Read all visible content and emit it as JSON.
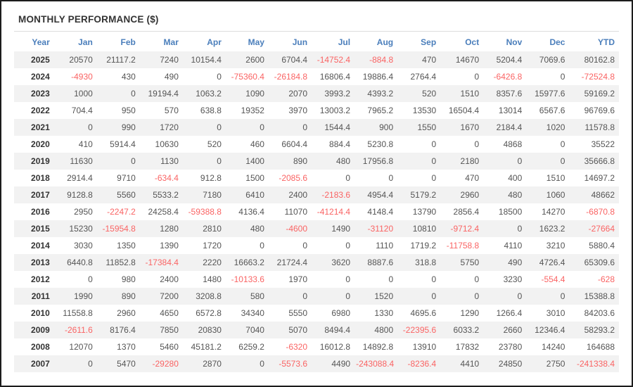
{
  "title": "MONTHLY PERFORMANCE ($)",
  "table": {
    "columns": [
      "Year",
      "Jan",
      "Feb",
      "Mar",
      "Apr",
      "May",
      "Jun",
      "Jul",
      "Aug",
      "Sep",
      "Oct",
      "Nov",
      "Dec",
      "YTD"
    ],
    "rows": [
      {
        "year": "2025",
        "values": [
          20570,
          21117.2,
          7240,
          10154.4,
          2600,
          6704.4,
          -14752.4,
          -884.8,
          470,
          14670,
          5204.4,
          7069.6,
          80162.8
        ]
      },
      {
        "year": "2024",
        "values": [
          -4930,
          430,
          490,
          0,
          -75360.4,
          -26184.8,
          16806.4,
          19886.4,
          2764.4,
          0,
          -6426.8,
          0,
          -72524.8
        ]
      },
      {
        "year": "2023",
        "values": [
          1000,
          0,
          19194.4,
          1063.2,
          1090,
          2070,
          3993.2,
          4393.2,
          520,
          1510,
          8357.6,
          15977.6,
          59169.2
        ]
      },
      {
        "year": "2022",
        "values": [
          704.4,
          950,
          570,
          638.8,
          19352,
          3970,
          13003.2,
          7965.2,
          13530,
          16504.4,
          13014,
          6567.6,
          96769.6
        ]
      },
      {
        "year": "2021",
        "values": [
          0,
          990,
          1720,
          0,
          0,
          0,
          1544.4,
          900,
          1550,
          1670,
          2184.4,
          1020,
          11578.8
        ]
      },
      {
        "year": "2020",
        "values": [
          410,
          5914.4,
          10630,
          520,
          460,
          6604.4,
          884.4,
          5230.8,
          0,
          0,
          4868,
          0,
          35522
        ]
      },
      {
        "year": "2019",
        "values": [
          11630,
          0,
          1130,
          0,
          1400,
          890,
          480,
          17956.8,
          0,
          2180,
          0,
          0,
          35666.8
        ]
      },
      {
        "year": "2018",
        "values": [
          2914.4,
          9710,
          -634.4,
          912.8,
          1500,
          -2085.6,
          0,
          0,
          0,
          470,
          400,
          1510,
          14697.2
        ]
      },
      {
        "year": "2017",
        "values": [
          9128.8,
          5560,
          5533.2,
          7180,
          6410,
          2400,
          -2183.6,
          4954.4,
          5179.2,
          2960,
          480,
          1060,
          48662
        ]
      },
      {
        "year": "2016",
        "values": [
          2950,
          -2247.2,
          24258.4,
          -59388.8,
          4136.4,
          11070,
          -41214.4,
          4148.4,
          13790,
          2856.4,
          18500,
          14270,
          -6870.8
        ]
      },
      {
        "year": "2015",
        "values": [
          15230,
          -15954.8,
          1280,
          2810,
          480,
          -4600,
          1490,
          -31120,
          10810,
          -9712.4,
          0,
          1623.2,
          -27664
        ]
      },
      {
        "year": "2014",
        "values": [
          3030,
          1350,
          1390,
          1720,
          0,
          0,
          0,
          1110,
          1719.2,
          -11758.8,
          4110,
          3210,
          5880.4
        ]
      },
      {
        "year": "2013",
        "values": [
          6440.8,
          11852.8,
          -17384.4,
          2220,
          16663.2,
          21724.4,
          3620,
          8887.6,
          318.8,
          5750,
          490,
          4726.4,
          65309.6
        ]
      },
      {
        "year": "2012",
        "values": [
          0,
          980,
          2400,
          1480,
          -10133.6,
          1970,
          0,
          0,
          0,
          0,
          3230,
          -554.4,
          -628
        ]
      },
      {
        "year": "2011",
        "values": [
          1990,
          890,
          7200,
          3208.8,
          580,
          0,
          0,
          1520,
          0,
          0,
          0,
          0,
          15388.8
        ]
      },
      {
        "year": "2010",
        "values": [
          11558.8,
          2960,
          4650,
          6572.8,
          34340,
          5550,
          6980,
          1330,
          4695.6,
          1290,
          1266.4,
          3010,
          84203.6
        ]
      },
      {
        "year": "2009",
        "values": [
          -2611.6,
          8176.4,
          7850,
          20830,
          7040,
          5070,
          8494.4,
          4800,
          -22395.6,
          6033.2,
          2660,
          12346.4,
          58293.2
        ]
      },
      {
        "year": "2008",
        "values": [
          12070,
          1370,
          5460,
          45181.2,
          6259.2,
          -6320,
          16012.8,
          14892.8,
          13910,
          17832,
          23780,
          14240,
          164688
        ]
      },
      {
        "year": "2007",
        "values": [
          0,
          5470,
          -29280,
          2870,
          0,
          -5573.6,
          4490,
          -243088.4,
          -8236.4,
          4410,
          24850,
          2750,
          -241338.4
        ]
      }
    ]
  },
  "colors": {
    "header_text": "#4a7ebb",
    "negative_value": "#fa6464",
    "value_text": "#555555",
    "year_text": "#333333",
    "alt_row_bg": "#f2f2f2"
  }
}
